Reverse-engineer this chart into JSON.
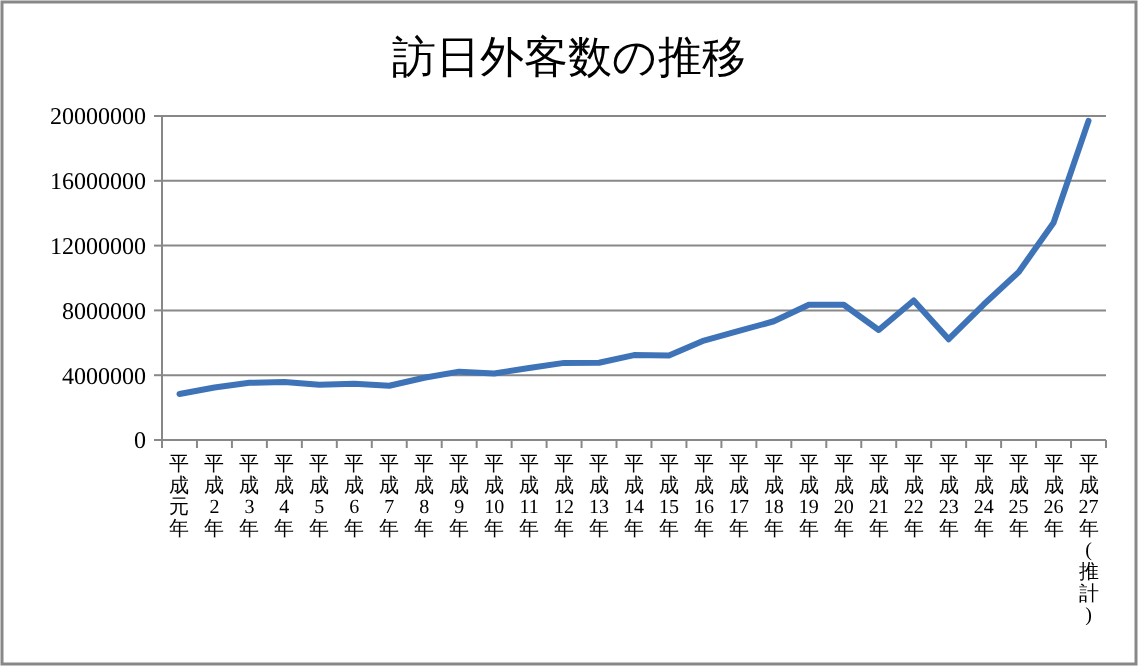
{
  "chart_data": {
    "type": "line",
    "title": "訪日外客数の推移",
    "categories": [
      "平成元年",
      "平成2年",
      "平成3年",
      "平成4年",
      "平成5年",
      "平成6年",
      "平成7年",
      "平成8年",
      "平成9年",
      "平成10年",
      "平成11年",
      "平成12年",
      "平成13年",
      "平成14年",
      "平成15年",
      "平成16年",
      "平成17年",
      "平成18年",
      "平成19年",
      "平成20年",
      "平成21年",
      "平成22年",
      "平成23年",
      "平成24年",
      "平成25年",
      "平成26年",
      "平成27年(推計)"
    ],
    "series": [
      {
        "color": "#3f73b8",
        "values": [
          2840000,
          3240000,
          3530000,
          3580000,
          3410000,
          3470000,
          3350000,
          3840000,
          4220000,
          4110000,
          4440000,
          4760000,
          4770000,
          5240000,
          5210000,
          6140000,
          6730000,
          7330000,
          8350000,
          8350000,
          6790000,
          8610000,
          6220000,
          8360000,
          10360000,
          13410000,
          19700000
        ]
      }
    ],
    "ylim": [
      0,
      20000000
    ],
    "yticks": [
      0,
      4000000,
      8000000,
      12000000,
      16000000,
      20000000
    ],
    "grid": "y",
    "marker": "none",
    "line_style": "solid"
  }
}
